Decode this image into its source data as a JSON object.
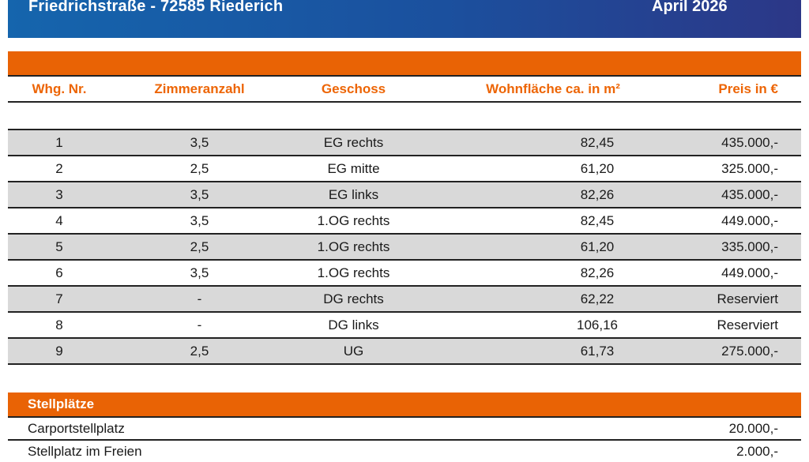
{
  "header": {
    "title": "Friedrichstraße - 72585 Riederich",
    "date": "April 2026"
  },
  "apartments_table": {
    "columns": [
      "Whg. Nr.",
      "Zimmeranzahl",
      "Geschoss",
      "Wohnfläche ca. in m²",
      "Preis in €"
    ],
    "rows": [
      [
        "1",
        "3,5",
        "EG rechts",
        "82,45",
        "435.000,-"
      ],
      [
        "2",
        "2,5",
        "EG mitte",
        "61,20",
        "325.000,-"
      ],
      [
        "3",
        "3,5",
        "EG links",
        "82,26",
        "435.000,-"
      ],
      [
        "4",
        "3,5",
        "1.OG rechts",
        "82,45",
        "449.000,-"
      ],
      [
        "5",
        "2,5",
        "1.OG rechts",
        "61,20",
        "335.000,-"
      ],
      [
        "6",
        "3,5",
        "1.OG rechts",
        "82,26",
        "449.000,-"
      ],
      [
        "7",
        "-",
        "DG rechts",
        "62,22",
        "Reserviert"
      ],
      [
        "8",
        "-",
        "DG links",
        "106,16",
        "Reserviert"
      ],
      [
        "9",
        "2,5",
        "UG",
        "61,73",
        "275.000,-"
      ]
    ]
  },
  "parking": {
    "title": "Stellplätze",
    "rows": [
      {
        "label": "Carportstellplatz",
        "price": "20.000,-"
      },
      {
        "label": "Stellplatz im Freien",
        "price": "2.000,-"
      }
    ]
  },
  "colors": {
    "header_blue_left": "#1565ad",
    "header_blue_right": "#2c3787",
    "accent_orange": "#e96305",
    "row_stripe_gray": "#d9d9d9",
    "rule_line": "#222222",
    "header_text": "#ffffff",
    "column_header_text": "#ed6505",
    "body_text": "#1a1a1a"
  }
}
